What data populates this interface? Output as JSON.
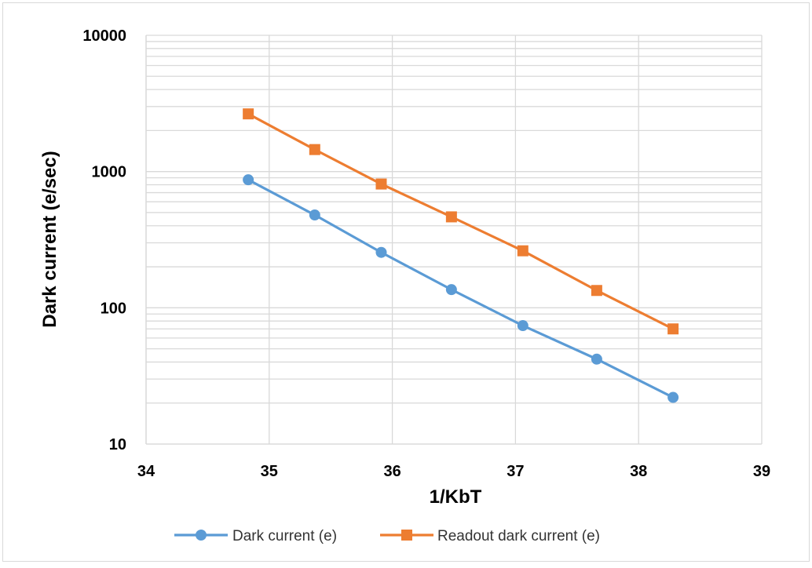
{
  "chart_data": {
    "type": "line",
    "xlabel": "1/KbT",
    "ylabel": "Dark current (e/sec)",
    "xlim": [
      34,
      39
    ],
    "ylim": [
      10,
      10000
    ],
    "y_scale": "log",
    "x_ticks": [
      "34",
      "35",
      "36",
      "37",
      "38",
      "39"
    ],
    "y_ticks": [
      "10",
      "100",
      "1000",
      "10000"
    ],
    "grid": true,
    "legend_position": "bottom",
    "series": [
      {
        "name": "Dark current (e)",
        "color": "#5B9BD5",
        "marker": "circle",
        "x": [
          34.83,
          35.37,
          35.91,
          36.48,
          37.06,
          37.66,
          38.28
        ],
        "y": [
          870,
          480,
          255,
          136,
          74,
          42,
          22
        ]
      },
      {
        "name": "Readout dark current (e)",
        "color": "#ED7D31",
        "marker": "square",
        "x": [
          34.83,
          35.37,
          35.91,
          36.48,
          37.06,
          37.66,
          38.28
        ],
        "y": [
          2650,
          1450,
          810,
          465,
          262,
          134,
          70
        ]
      }
    ]
  }
}
